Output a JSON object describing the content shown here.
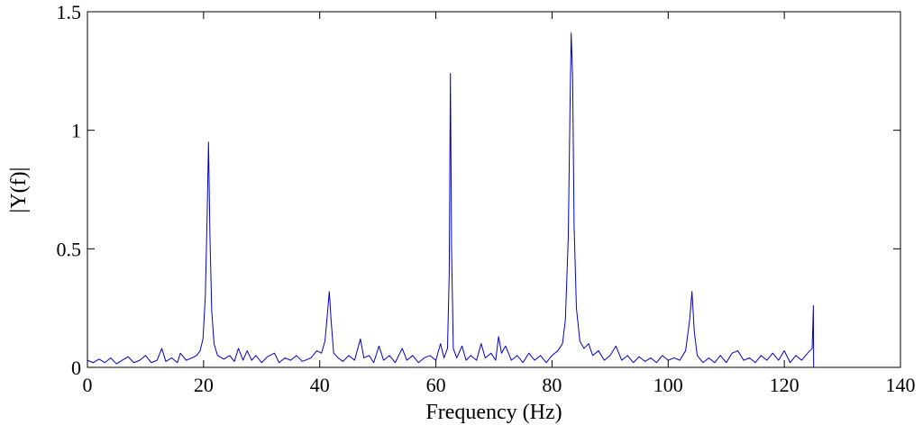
{
  "chart_data": {
    "type": "line",
    "title": "",
    "xlabel": "Frequency (Hz)",
    "ylabel": "|Y(f)|",
    "xlim": [
      0,
      140
    ],
    "ylim": [
      0,
      1.5
    ],
    "x_ticks": [
      "0",
      "20",
      "40",
      "60",
      "80",
      "100",
      "120",
      "140"
    ],
    "y_ticks": [
      "0",
      "0.5",
      "1",
      "1.5"
    ],
    "grid": false,
    "legend": "none",
    "series": [
      {
        "color": "#0000cc",
        "points": [
          [
            0,
            0.03
          ],
          [
            1,
            0.02
          ],
          [
            2,
            0.035
          ],
          [
            3,
            0.02
          ],
          [
            4,
            0.04
          ],
          [
            5,
            0.015
          ],
          [
            6,
            0.03
          ],
          [
            7,
            0.045
          ],
          [
            8,
            0.02
          ],
          [
            9,
            0.03
          ],
          [
            10,
            0.05
          ],
          [
            11,
            0.02
          ],
          [
            12,
            0.03
          ],
          [
            12.8,
            0.08
          ],
          [
            13.5,
            0.025
          ],
          [
            14.5,
            0.04
          ],
          [
            15.5,
            0.02
          ],
          [
            16,
            0.06
          ],
          [
            17,
            0.03
          ],
          [
            18,
            0.04
          ],
          [
            18.8,
            0.05
          ],
          [
            19.4,
            0.07
          ],
          [
            19.9,
            0.12
          ],
          [
            20.3,
            0.3
          ],
          [
            20.6,
            0.62
          ],
          [
            20.85,
            0.95
          ],
          [
            21.1,
            0.55
          ],
          [
            21.4,
            0.24
          ],
          [
            21.8,
            0.1
          ],
          [
            22.4,
            0.05
          ],
          [
            23.5,
            0.035
          ],
          [
            24.5,
            0.05
          ],
          [
            25.3,
            0.025
          ],
          [
            26,
            0.08
          ],
          [
            26.8,
            0.03
          ],
          [
            27.5,
            0.07
          ],
          [
            28.3,
            0.03
          ],
          [
            29,
            0.05
          ],
          [
            30,
            0.02
          ],
          [
            31,
            0.045
          ],
          [
            32.2,
            0.06
          ],
          [
            33,
            0.02
          ],
          [
            34,
            0.04
          ],
          [
            35,
            0.03
          ],
          [
            36,
            0.05
          ],
          [
            37,
            0.025
          ],
          [
            38.5,
            0.04
          ],
          [
            39.5,
            0.07
          ],
          [
            40.3,
            0.06
          ],
          [
            40.9,
            0.11
          ],
          [
            41.3,
            0.22
          ],
          [
            41.65,
            0.32
          ],
          [
            41.95,
            0.2
          ],
          [
            42.4,
            0.06
          ],
          [
            43.2,
            0.04
          ],
          [
            44,
            0.025
          ],
          [
            45,
            0.05
          ],
          [
            46,
            0.03
          ],
          [
            47,
            0.12
          ],
          [
            47.6,
            0.04
          ],
          [
            48.5,
            0.05
          ],
          [
            49.3,
            0.02
          ],
          [
            50.2,
            0.09
          ],
          [
            51,
            0.03
          ],
          [
            52,
            0.05
          ],
          [
            53,
            0.02
          ],
          [
            54.2,
            0.08
          ],
          [
            55,
            0.03
          ],
          [
            56,
            0.05
          ],
          [
            57,
            0.02
          ],
          [
            58,
            0.04
          ],
          [
            59,
            0.05
          ],
          [
            60,
            0.03
          ],
          [
            60.8,
            0.1
          ],
          [
            61.4,
            0.04
          ],
          [
            62,
            0.08
          ],
          [
            62.3,
            0.4
          ],
          [
            62.5,
            1.24
          ],
          [
            62.7,
            0.5
          ],
          [
            63,
            0.08
          ],
          [
            63.6,
            0.04
          ],
          [
            64.5,
            0.09
          ],
          [
            65.2,
            0.03
          ],
          [
            66,
            0.05
          ],
          [
            67,
            0.03
          ],
          [
            67.8,
            0.1
          ],
          [
            68.5,
            0.04
          ],
          [
            69.5,
            0.06
          ],
          [
            70.3,
            0.03
          ],
          [
            70.8,
            0.13
          ],
          [
            71.3,
            0.06
          ],
          [
            72,
            0.09
          ],
          [
            73,
            0.03
          ],
          [
            74,
            0.05
          ],
          [
            75,
            0.02
          ],
          [
            76,
            0.06
          ],
          [
            77,
            0.03
          ],
          [
            78,
            0.05
          ],
          [
            79,
            0.02
          ],
          [
            80,
            0.05
          ],
          [
            81,
            0.07
          ],
          [
            81.8,
            0.1
          ],
          [
            82.3,
            0.2
          ],
          [
            82.8,
            0.55
          ],
          [
            83.1,
            1.1
          ],
          [
            83.3,
            1.41
          ],
          [
            83.55,
            1.22
          ],
          [
            83.8,
            0.6
          ],
          [
            84.2,
            0.25
          ],
          [
            84.8,
            0.11
          ],
          [
            85.5,
            0.08
          ],
          [
            86.3,
            0.1
          ],
          [
            87,
            0.05
          ],
          [
            88,
            0.07
          ],
          [
            89,
            0.03
          ],
          [
            90,
            0.05
          ],
          [
            91,
            0.09
          ],
          [
            92,
            0.03
          ],
          [
            93,
            0.05
          ],
          [
            94,
            0.02
          ],
          [
            95,
            0.045
          ],
          [
            96,
            0.025
          ],
          [
            97,
            0.04
          ],
          [
            98,
            0.02
          ],
          [
            99,
            0.05
          ],
          [
            100,
            0.03
          ],
          [
            101,
            0.04
          ],
          [
            102,
            0.03
          ],
          [
            103,
            0.07
          ],
          [
            103.7,
            0.2
          ],
          [
            104.1,
            0.32
          ],
          [
            104.5,
            0.15
          ],
          [
            105,
            0.05
          ],
          [
            106,
            0.02
          ],
          [
            107,
            0.04
          ],
          [
            108,
            0.02
          ],
          [
            109,
            0.05
          ],
          [
            110,
            0.02
          ],
          [
            111,
            0.06
          ],
          [
            112,
            0.07
          ],
          [
            113,
            0.03
          ],
          [
            114,
            0.04
          ],
          [
            115,
            0.02
          ],
          [
            116,
            0.05
          ],
          [
            117,
            0.03
          ],
          [
            118,
            0.06
          ],
          [
            119,
            0.03
          ],
          [
            120,
            0.07
          ],
          [
            121,
            0.02
          ],
          [
            122,
            0.05
          ],
          [
            123,
            0.03
          ],
          [
            124,
            0.06
          ],
          [
            124.8,
            0.08
          ],
          [
            125,
            0.26
          ],
          [
            125.05,
            0.0
          ]
        ]
      }
    ]
  }
}
